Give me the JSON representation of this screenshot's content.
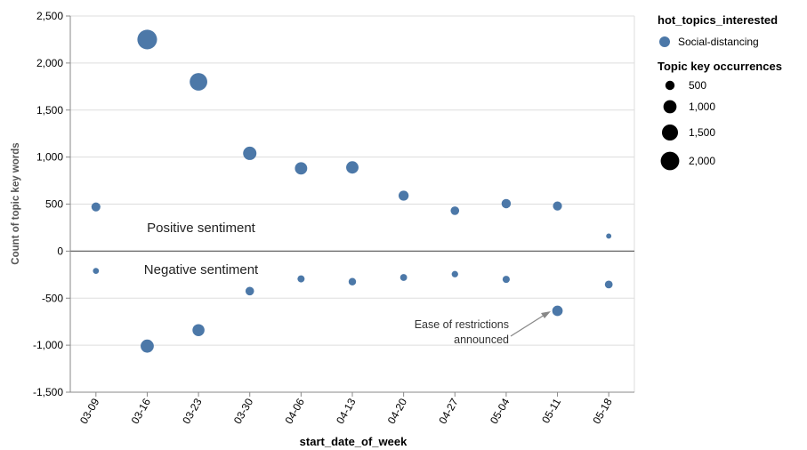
{
  "chart_data": {
    "type": "scatter",
    "title": "",
    "xlabel": "start_date_of_week",
    "ylabel": "Count of topic key words",
    "categories": [
      "03-09",
      "03-16",
      "03-23",
      "03-30",
      "04-06",
      "04-13",
      "04-20",
      "04-27",
      "05-04",
      "05-11",
      "05-18"
    ],
    "ylim": [
      -1500,
      2500
    ],
    "yticks": [
      -1500,
      -1000,
      -500,
      0,
      500,
      1000,
      1500,
      2000,
      2500
    ],
    "ytick_labels": [
      "-1,500",
      "-1,000",
      "-500",
      "0",
      "500",
      "1,000",
      "1,500",
      "2,000",
      "2,500"
    ],
    "grid": true,
    "zero_line": true,
    "series": [
      {
        "name": "Social-distancing",
        "color": "#4c78a8",
        "positive": [
          470,
          2250,
          1800,
          1040,
          880,
          890,
          590,
          430,
          505,
          480,
          160
        ],
        "negative": [
          -210,
          -1010,
          -840,
          -425,
          -295,
          -325,
          -280,
          -245,
          -300,
          -635,
          -355
        ]
      }
    ],
    "annotations": {
      "positive_label": "Positive sentiment",
      "negative_label": "Negative sentiment",
      "restrictions_line1": "Ease of restrictions",
      "restrictions_line2": "announced"
    },
    "legend": {
      "placement": "right",
      "color_title": "hot_topics_interested",
      "color_item": "Social-distancing",
      "size_title": "Topic key occurrences",
      "size_values": [
        500,
        1000,
        1500,
        2000
      ],
      "size_labels": [
        "500",
        "1,000",
        "1,500",
        "2,000"
      ]
    }
  }
}
